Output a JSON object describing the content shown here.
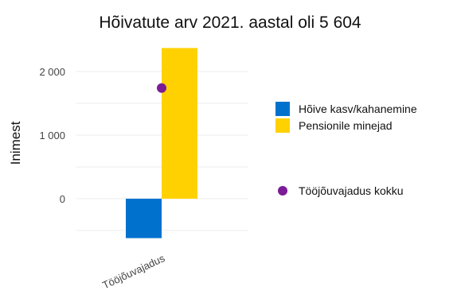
{
  "chart_data": {
    "type": "bar",
    "title": "Hõivatute arv 2021. aastal oli 5 604",
    "xlabel": "",
    "ylabel": "Inimest",
    "categories": [
      "Tööjõuvajadus"
    ],
    "ylim": [
      -650,
      2400
    ],
    "yticks": [
      0,
      1000,
      2000
    ],
    "ytick_labels": [
      "0",
      "1 000",
      "2 000"
    ],
    "grid": true,
    "legend_position": "right",
    "series": [
      {
        "name": "Hõive kasv/kahanemine",
        "type": "bar",
        "color": "#0072ce",
        "values": [
          -620
        ]
      },
      {
        "name": "Pensionile minejad",
        "type": "bar",
        "color": "#ffd100",
        "values": [
          2370
        ]
      }
    ],
    "points": [
      {
        "name": "Tööjõuvajadus kokku",
        "type": "point",
        "color": "#7b1c96",
        "values": [
          1740
        ]
      }
    ]
  }
}
